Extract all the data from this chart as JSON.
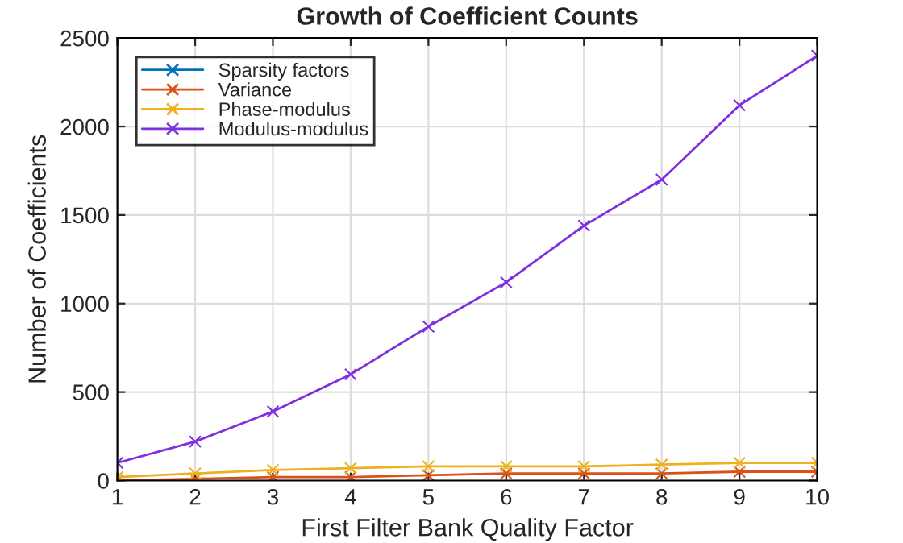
{
  "chart_data": {
    "type": "line",
    "title": "Growth of Coefficient Counts",
    "xlabel": "First Filter Bank Quality Factor",
    "ylabel": "Number of Coefficients",
    "x": [
      1,
      2,
      3,
      4,
      5,
      6,
      7,
      8,
      9,
      10
    ],
    "series": [
      {
        "name": "Sparsity factors",
        "color": "#0072bd",
        "values": [
          null,
          null,
          null,
          null,
          null,
          null,
          null,
          null,
          null,
          null
        ]
      },
      {
        "name": "Variance",
        "color": "#d95319",
        "values": [
          0,
          10,
          20,
          20,
          30,
          40,
          40,
          40,
          50,
          50
        ]
      },
      {
        "name": "Phase-modulus",
        "color": "#edb120",
        "values": [
          20,
          40,
          60,
          70,
          80,
          80,
          80,
          90,
          100,
          100
        ]
      },
      {
        "name": "Modulus-modulus",
        "color": "#7e2fe0",
        "values": [
          100,
          220,
          390,
          600,
          870,
          1120,
          1440,
          1700,
          2120,
          2400
        ]
      }
    ],
    "xlim": [
      1,
      10
    ],
    "xticks": [
      1,
      2,
      3,
      4,
      5,
      6,
      7,
      8,
      9,
      10
    ],
    "ylim": [
      0,
      2500
    ],
    "yticks": [
      0,
      500,
      1000,
      1500,
      2000,
      2500
    ],
    "grid": true,
    "legend": "top left",
    "marker": "cross",
    "line_style": "solid"
  }
}
